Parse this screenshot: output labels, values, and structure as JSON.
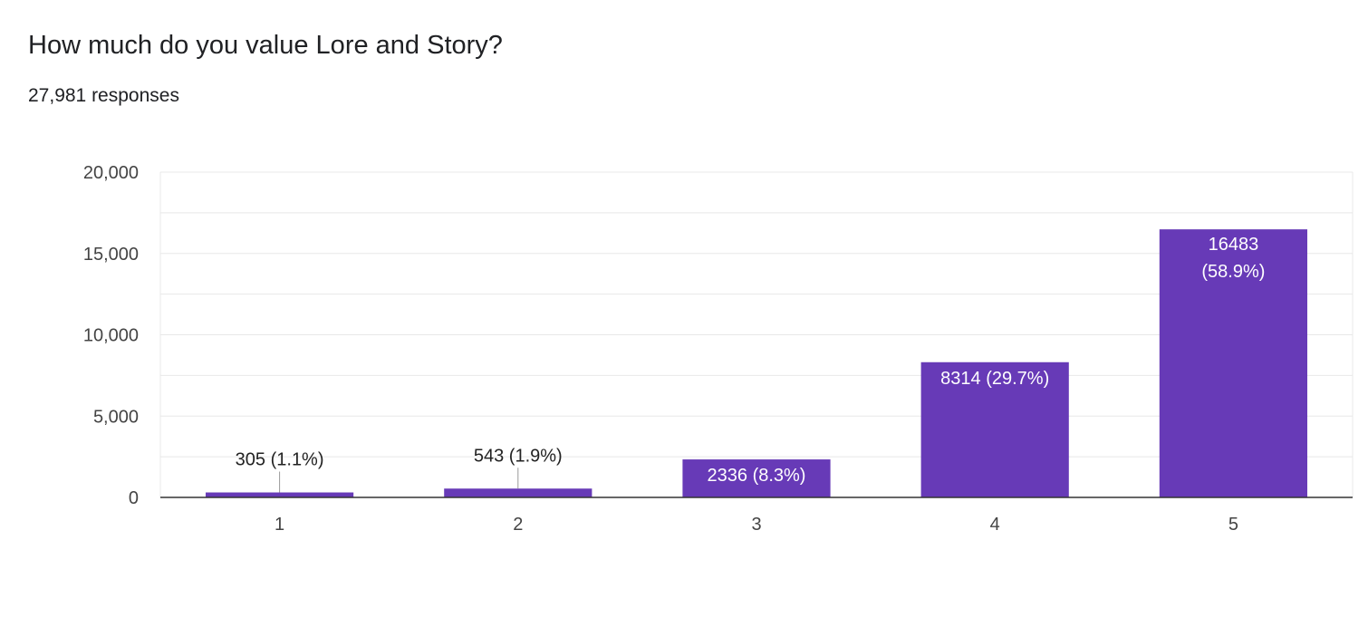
{
  "question": "How much do you value Lore and Story?",
  "responses": "27,981 responses",
  "colors": {
    "bar": "#673ab7",
    "grid": "#e8e8e8",
    "axis": "#333333",
    "label_inside": "#ffffff",
    "label_outside": "#222222"
  },
  "chart_data": {
    "type": "bar",
    "title": "How much do you value Lore and Story?",
    "xlabel": "",
    "ylabel": "",
    "categories": [
      "1",
      "2",
      "3",
      "4",
      "5"
    ],
    "values": [
      305,
      543,
      2336,
      8314,
      16483
    ],
    "percent_labels": [
      "1.1%",
      "1.9%",
      "8.3%",
      "29.7%",
      "58.9%"
    ],
    "data_labels": [
      "305 (1.1%)",
      "543 (1.9%)",
      "2336 (8.3%)",
      "8314 (29.7%)",
      "16483 (58.9%)"
    ],
    "ylim": [
      0,
      20000
    ],
    "yticks": [
      0,
      5000,
      10000,
      15000,
      20000
    ],
    "ytick_labels": [
      "0",
      "5,000",
      "10,000",
      "15,000",
      "20,000"
    ],
    "grid": true,
    "legend": "none"
  }
}
